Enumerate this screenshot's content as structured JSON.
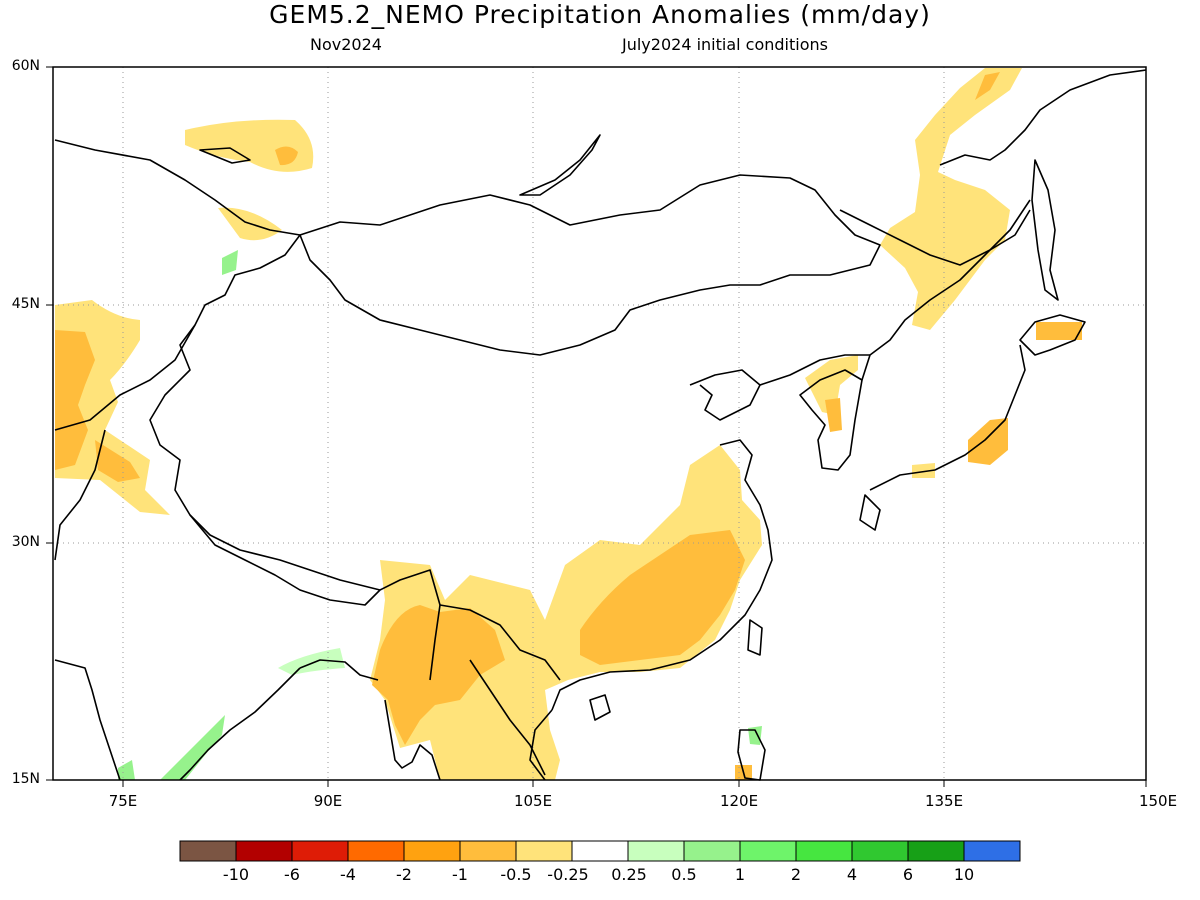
{
  "title": "GEM5.2_NEMO Precipitation Anomalies (mm/day)",
  "subtitle_left": "Nov2024",
  "subtitle_right": "July2024 initial conditions",
  "map": {
    "lat_labels": [
      "60N",
      "45N",
      "30N",
      "15N"
    ],
    "lon_labels": [
      "75E",
      "90E",
      "105E",
      "120E",
      "135E",
      "150E"
    ],
    "lat_range": [
      15,
      60
    ],
    "lon_range": [
      70,
      150
    ],
    "gridlines": "dotted"
  },
  "legend": {
    "labels": [
      "-10",
      "-6",
      "-4",
      "-2",
      "-1",
      "-0.5",
      "-0.25",
      "0.25",
      "0.5",
      "1",
      "2",
      "4",
      "6",
      "10"
    ],
    "colors": [
      "#7b5543",
      "#b20000",
      "#de1c06",
      "#ff6a00",
      "#ffa210",
      "#ffbd3c",
      "#ffe37a",
      "#ffffff",
      "#c8ffbe",
      "#96f28c",
      "#6ef46a",
      "#46e640",
      "#30c830",
      "#17a017",
      "#2e6fe6"
    ]
  }
}
